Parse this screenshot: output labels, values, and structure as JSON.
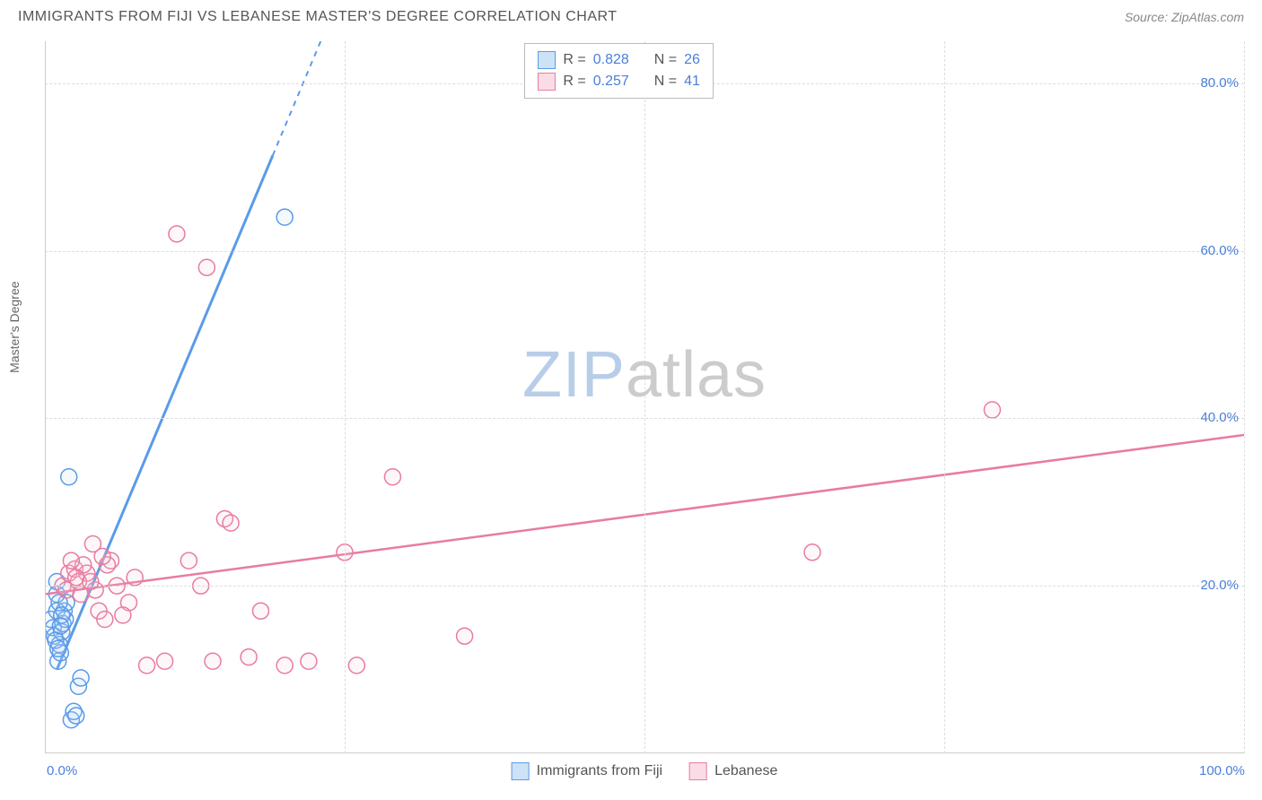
{
  "title": "IMMIGRANTS FROM FIJI VS LEBANESE MASTER'S DEGREE CORRELATION CHART",
  "source_label": "Source: ZipAtlas.com",
  "watermark": {
    "part1": "ZIP",
    "part2": "atlas"
  },
  "y_axis_label": "Master's Degree",
  "chart": {
    "type": "scatter",
    "xlim": [
      0,
      100
    ],
    "ylim": [
      0,
      85
    ],
    "x_ticks": [
      {
        "value": 0,
        "label": "0.0%"
      },
      {
        "value": 100,
        "label": "100.0%"
      }
    ],
    "y_ticks": [
      {
        "value": 20,
        "label": "20.0%"
      },
      {
        "value": 40,
        "label": "40.0%"
      },
      {
        "value": 60,
        "label": "60.0%"
      },
      {
        "value": 80,
        "label": "80.0%"
      }
    ],
    "x_gridlines": [
      25,
      50,
      75,
      100
    ],
    "background_color": "#ffffff",
    "grid_color": "#dddddd",
    "axis_color": "#cccccc",
    "tick_label_color": "#4a7fd8",
    "tick_label_fontsize": 15,
    "marker_radius": 9,
    "marker_stroke_width": 1.5,
    "marker_fill_opacity": 0.15
  },
  "series": [
    {
      "id": "fiji",
      "name": "Immigrants from Fiji",
      "stroke": "#5a9be8",
      "fill": "#b9d6f5",
      "swatch_fill": "#cde2f7",
      "r_label": "R =",
      "r_value": "0.828",
      "n_label": "N =",
      "n_value": "26",
      "regression": {
        "x1": 1,
        "y1": 10,
        "x2": 23,
        "y2": 85,
        "dash_from_x": 19
      },
      "points": [
        [
          0.5,
          16
        ],
        [
          0.7,
          15
        ],
        [
          0.8,
          14
        ],
        [
          1.0,
          17
        ],
        [
          1.1,
          11
        ],
        [
          1.2,
          13
        ],
        [
          1.3,
          12
        ],
        [
          1.4,
          14.5
        ],
        [
          1.5,
          15.5
        ],
        [
          1.6,
          17
        ],
        [
          1.7,
          16
        ],
        [
          1.8,
          18
        ],
        [
          2.0,
          33
        ],
        [
          2.2,
          4
        ],
        [
          2.4,
          5
        ],
        [
          2.6,
          4.5
        ],
        [
          2.8,
          8
        ],
        [
          3.0,
          9
        ],
        [
          1.0,
          19
        ],
        [
          1.2,
          18
        ],
        [
          0.9,
          13.5
        ],
        [
          1.1,
          12.5
        ],
        [
          20,
          64
        ],
        [
          1.4,
          16.5
        ],
        [
          1.0,
          20.5
        ],
        [
          1.3,
          15.2
        ]
      ]
    },
    {
      "id": "lebanese",
      "name": "Lebanese",
      "stroke": "#e87ca0",
      "fill": "#f7c6d6",
      "swatch_fill": "#fadce6",
      "r_label": "R =",
      "r_value": "0.257",
      "n_label": "N =",
      "n_value": "41",
      "regression": {
        "x1": 0,
        "y1": 19,
        "x2": 100,
        "y2": 38,
        "dash_from_x": 1000
      },
      "points": [
        [
          1.5,
          20
        ],
        [
          2.0,
          21.5
        ],
        [
          2.5,
          22
        ],
        [
          3.0,
          19
        ],
        [
          3.5,
          21.5
        ],
        [
          4.0,
          25
        ],
        [
          4.5,
          17
        ],
        [
          5.0,
          16
        ],
        [
          5.5,
          23
        ],
        [
          6.0,
          20
        ],
        [
          7.0,
          18
        ],
        [
          7.5,
          21
        ],
        [
          8.5,
          10.5
        ],
        [
          10,
          11
        ],
        [
          11,
          62
        ],
        [
          12,
          23
        ],
        [
          13,
          20
        ],
        [
          13.5,
          58
        ],
        [
          14,
          11
        ],
        [
          15,
          28
        ],
        [
          15.5,
          27.5
        ],
        [
          17,
          11.5
        ],
        [
          18,
          17
        ],
        [
          20,
          10.5
        ],
        [
          22,
          11
        ],
        [
          25,
          24
        ],
        [
          26,
          10.5
        ],
        [
          29,
          33
        ],
        [
          35,
          14
        ],
        [
          64,
          24
        ],
        [
          79,
          41
        ],
        [
          3.2,
          22.5
        ],
        [
          2.8,
          20.5
        ],
        [
          4.2,
          19.5
        ],
        [
          6.5,
          16.5
        ],
        [
          2.2,
          23
        ],
        [
          5.2,
          22.5
        ],
        [
          1.8,
          19.5
        ],
        [
          2.6,
          21
        ],
        [
          3.8,
          20.5
        ],
        [
          4.8,
          23.5
        ]
      ]
    }
  ],
  "legend_bottom": [
    {
      "series": "fiji",
      "label": "Immigrants from Fiji"
    },
    {
      "series": "lebanese",
      "label": "Lebanese"
    }
  ]
}
